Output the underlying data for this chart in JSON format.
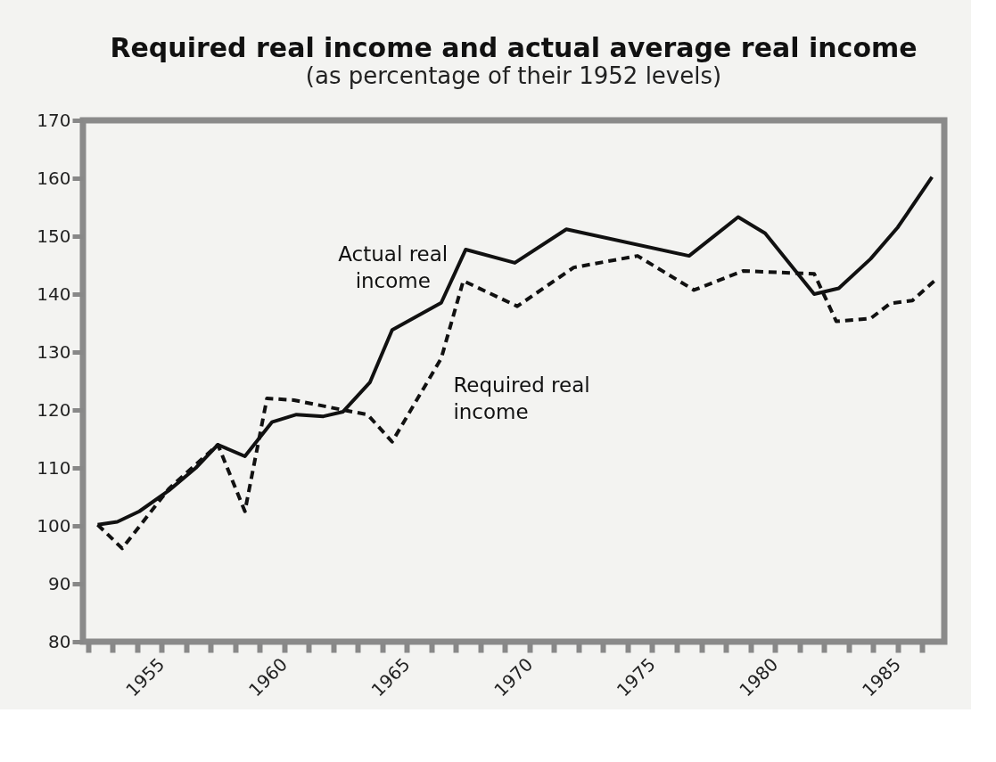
{
  "chart_data": {
    "type": "line",
    "title": "Required real income and actual average real income",
    "subtitle": "(as percentage of their 1952 levels)",
    "series": [
      {
        "name": "Actual real income",
        "color": "#111111",
        "line_style": "solid",
        "x": [
          1952.4,
          1953.2,
          1954.1,
          1955.3,
          1956.4,
          1957.3,
          1958.4,
          1959.5,
          1960.5,
          1961.6,
          1962.4,
          1963.5,
          1964.4,
          1966.4,
          1967.4,
          1969.4,
          1971.5,
          1976.5,
          1978.5,
          1979.6,
          1981.6,
          1982.6,
          1983.9,
          1985.0,
          1986.4
        ],
        "values": [
          100.2,
          100.7,
          102.5,
          106.1,
          110,
          114,
          112,
          117.9,
          119.2,
          118.9,
          119.7,
          124.8,
          133.8,
          138.5,
          147.7,
          145.4,
          151.2,
          146.6,
          153.3,
          150.5,
          140,
          141,
          146.1,
          151.5,
          160.2
        ]
      },
      {
        "name": "Required real income",
        "color": "#111111",
        "line_style": "dashed",
        "x": [
          1952.4,
          1953.4,
          1955.3,
          1957.3,
          1958.4,
          1959.3,
          1960.4,
          1962.4,
          1963.4,
          1964.4,
          1966.4,
          1967.3,
          1969.5,
          1971.8,
          1974.4,
          1976.7,
          1978.7,
          1981.6,
          1982.5,
          1983.9,
          1984.7,
          1985.6,
          1986.5
        ],
        "values": [
          100.2,
          96.1,
          106.4,
          114,
          102.5,
          122,
          121.7,
          120,
          119.2,
          114.5,
          128.9,
          142.3,
          137.9,
          144.6,
          146.6,
          140.7,
          144,
          143.5,
          135.3,
          135.8,
          138.4,
          138.9,
          142.3
        ]
      }
    ],
    "xlim": [
      1951.8,
      1986.9
    ],
    "xticks": [
      {
        "value": 1952,
        "label": null
      },
      {
        "value": 1953,
        "label": null
      },
      {
        "value": 1954,
        "label": null
      },
      1955,
      {
        "value": 1956,
        "label": null
      },
      {
        "value": 1957,
        "label": null
      },
      {
        "value": 1958,
        "label": null
      },
      {
        "value": 1959,
        "label": null
      },
      1960,
      {
        "value": 1961,
        "label": null
      },
      {
        "value": 1962,
        "label": null
      },
      {
        "value": 1963,
        "label": null
      },
      {
        "value": 1964,
        "label": null
      },
      1965,
      {
        "value": 1966,
        "label": null
      },
      {
        "value": 1967,
        "label": null
      },
      {
        "value": 1968,
        "label": null
      },
      {
        "value": 1969,
        "label": null
      },
      1970,
      {
        "value": 1971,
        "label": null
      },
      {
        "value": 1972,
        "label": null
      },
      {
        "value": 1973,
        "label": null
      },
      {
        "value": 1974,
        "label": null
      },
      1975,
      {
        "value": 1976,
        "label": null
      },
      {
        "value": 1977,
        "label": null
      },
      {
        "value": 1978,
        "label": null
      },
      {
        "value": 1979,
        "label": null
      },
      1980,
      {
        "value": 1981,
        "label": null
      },
      {
        "value": 1982,
        "label": null
      },
      {
        "value": 1983,
        "label": null
      },
      {
        "value": 1984,
        "label": null
      },
      1985,
      {
        "value": 1986,
        "label": null
      }
    ],
    "ylim": [
      80,
      170
    ],
    "yticks": [
      80,
      90,
      100,
      110,
      120,
      130,
      140,
      150,
      160,
      170
    ],
    "grid": false,
    "legend": false,
    "marker": "none"
  }
}
